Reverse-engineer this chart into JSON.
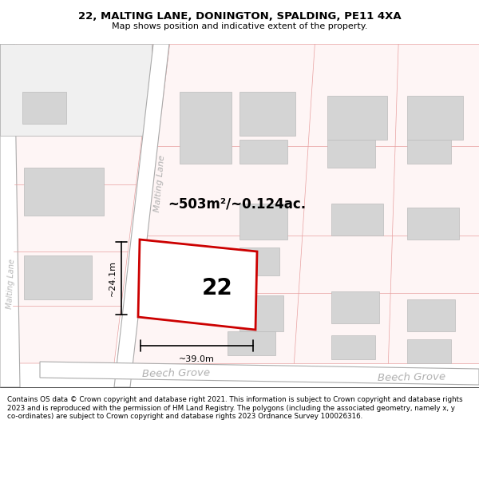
{
  "title_line1": "22, MALTING LANE, DONINGTON, SPALDING, PE11 4XA",
  "title_line2": "Map shows position and indicative extent of the property.",
  "footer_text": "Contains OS data © Crown copyright and database right 2021. This information is subject to Crown copyright and database rights 2023 and is reproduced with the permission of HM Land Registry. The polygons (including the associated geometry, namely x, y co-ordinates) are subject to Crown copyright and database rights 2023 Ordnance Survey 100026316.",
  "map_bg": "#ffffff",
  "road_pink": "#f5c8c8",
  "road_pink_dark": "#e8a0a0",
  "road_gray": "#c8c8c8",
  "road_gray_dark": "#aaaaaa",
  "building_fill": "#d4d4d4",
  "building_edge": "#bbbbbb",
  "plot_color": "#cc0000",
  "area_text": "~503m²/~0.124ac.",
  "number_text": "22",
  "dim_width": "~39.0m",
  "dim_height": "~24.1m",
  "label_malting": "Malting Lane",
  "label_malting2": "Malting Lane",
  "label_beech1": "Beech Grove",
  "label_beech2": "Beech Grove"
}
